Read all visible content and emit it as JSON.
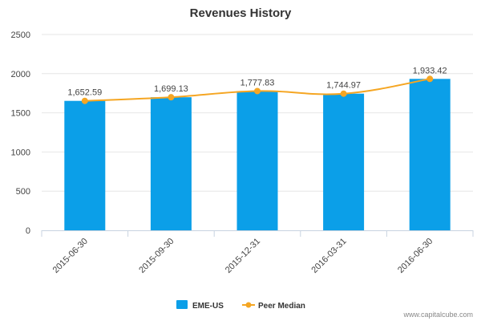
{
  "chart_data": {
    "type": "bar",
    "title": "Revenues History",
    "categories": [
      "2015-06-30",
      "2015-09-30",
      "2015-12-31",
      "2016-03-31",
      "2016-06-30"
    ],
    "series": [
      {
        "name": "EME-US",
        "type": "bar",
        "color": "#0b9fe8",
        "values": [
          1652.59,
          1699.13,
          1777.83,
          1744.97,
          1933.42
        ]
      },
      {
        "name": "Peer Median",
        "type": "line",
        "color": "#f5a623",
        "values": [
          1652.59,
          1699.13,
          1777.83,
          1744.97,
          1933.42
        ]
      }
    ],
    "data_labels": [
      "1,652.59",
      "1,699.13",
      "1,777.83",
      "1,744.97",
      "1,933.42"
    ],
    "ylim": [
      0,
      2500
    ],
    "yticks": [
      0,
      500,
      1000,
      1500,
      2000,
      2500
    ],
    "grid": true,
    "legend": "bottom-center"
  },
  "watermark": "www.capitalcube.com"
}
